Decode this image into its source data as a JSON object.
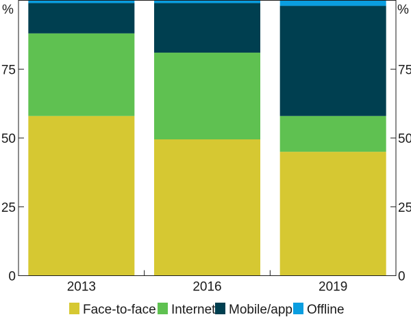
{
  "chart_data": {
    "type": "bar",
    "stacked": true,
    "title": "",
    "xlabel": "",
    "ylabel": "%",
    "ylabel_right": "%",
    "ylim": [
      0,
      100
    ],
    "yticks": [
      0,
      25,
      50,
      75
    ],
    "categories": [
      "2013",
      "2016",
      "2019"
    ],
    "series": [
      {
        "name": "Face-to-face",
        "color": "#d6c832",
        "values": [
          58,
          49.5,
          45
        ]
      },
      {
        "name": "Internet",
        "color": "#5fc151",
        "values": [
          30,
          31.5,
          13
        ]
      },
      {
        "name": "Mobile/app",
        "color": "#003f50",
        "values": [
          11,
          18,
          40
        ]
      },
      {
        "name": "Offline",
        "color": "#0a9ee0",
        "values": [
          1,
          1,
          2
        ]
      }
    ],
    "grid": false,
    "legend_position": "bottom"
  }
}
